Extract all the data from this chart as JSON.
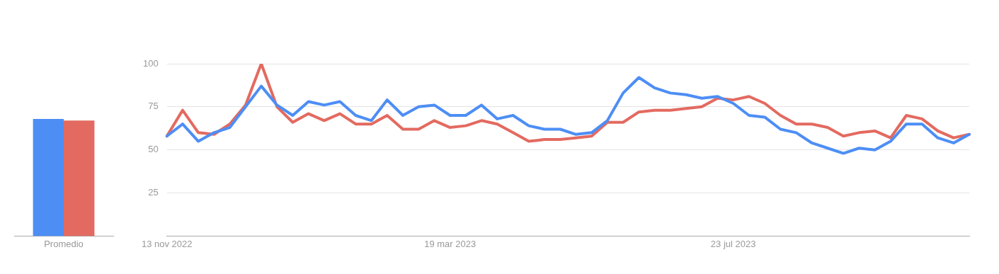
{
  "chart_data": [
    {
      "type": "bar",
      "categories": [
        "Promedio"
      ],
      "ylim": [
        0,
        100
      ],
      "tick_labels": "x",
      "series": [
        {
          "color": "#4d8ef5",
          "values": [
            68
          ]
        },
        {
          "color": "#e36a60",
          "values": [
            67
          ]
        }
      ]
    },
    {
      "type": "line",
      "ylim": [
        0,
        100
      ],
      "yticks": [
        25,
        50,
        75,
        100
      ],
      "grid": "y",
      "categories": [
        "13 nov 2022",
        null,
        null,
        null,
        null,
        null,
        null,
        null,
        null,
        null,
        null,
        null,
        null,
        null,
        null,
        null,
        null,
        null,
        "19 mar 2023",
        null,
        null,
        null,
        null,
        null,
        null,
        null,
        null,
        null,
        null,
        null,
        null,
        null,
        null,
        null,
        null,
        null,
        "23 jul 2023",
        null,
        null,
        null,
        null,
        null,
        null,
        null,
        null,
        null,
        null,
        null,
        null,
        null,
        null,
        null
      ],
      "series": [
        {
          "color": "#4d8ef5",
          "values": [
            58,
            65,
            55,
            60,
            63,
            75,
            87,
            76,
            70,
            78,
            76,
            78,
            70,
            67,
            79,
            70,
            75,
            76,
            70,
            70,
            76,
            68,
            70,
            64,
            62,
            62,
            59,
            60,
            67,
            83,
            92,
            86,
            83,
            82,
            80,
            81,
            77,
            70,
            69,
            62,
            60,
            54,
            51,
            48,
            51,
            50,
            55,
            65,
            65,
            57,
            54,
            59
          ]
        },
        {
          "color": "#e36a60",
          "values": [
            58,
            73,
            60,
            59,
            65,
            76,
            100,
            75,
            66,
            71,
            67,
            71,
            65,
            65,
            70,
            62,
            62,
            67,
            63,
            64,
            67,
            65,
            60,
            55,
            56,
            56,
            57,
            58,
            66,
            66,
            72,
            73,
            73,
            74,
            75,
            80,
            79,
            81,
            77,
            70,
            65,
            65,
            63,
            58,
            60,
            61,
            57,
            70,
            68,
            61,
            57,
            59
          ]
        }
      ]
    }
  ]
}
